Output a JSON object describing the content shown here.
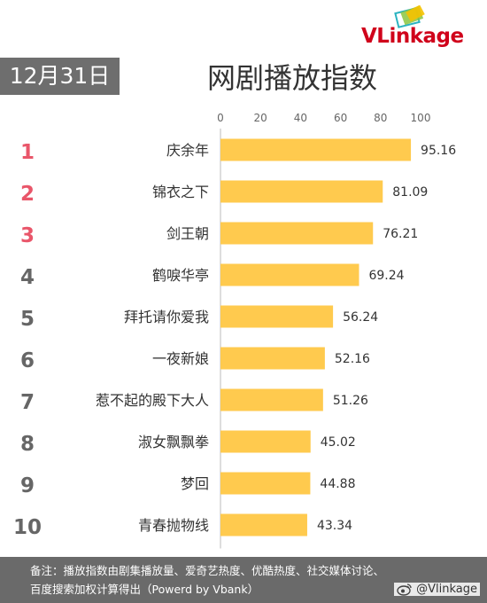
{
  "header": {
    "date": "12月31日",
    "title": "网剧播放指数",
    "logo": "VLinkage"
  },
  "chart_data": {
    "type": "bar",
    "orientation": "horizontal",
    "title": "网剧播放指数",
    "ranks": [
      "1",
      "2",
      "3",
      "4",
      "5",
      "6",
      "7",
      "8",
      "9",
      "10"
    ],
    "categories": [
      "庆余年",
      "锦衣之下",
      "剑王朝",
      "鹤唳华亭",
      "拜托请你爱我",
      "一夜新娘",
      "惹不起的殿下大人",
      "淑女飘飘拳",
      "梦回",
      "青春抛物线"
    ],
    "values": [
      95.16,
      81.09,
      76.21,
      69.24,
      56.24,
      52.16,
      51.26,
      45.02,
      44.88,
      43.34
    ],
    "value_labels": [
      "95.16",
      "81.09",
      "76.21",
      "69.24",
      "56.24",
      "52.16",
      "51.26",
      "45.02",
      "44.88",
      "43.34"
    ],
    "xlim": [
      0,
      100
    ],
    "xticks": [
      "0",
      "20",
      "40",
      "60",
      "80",
      "100"
    ],
    "axis_position": "top",
    "grid": false,
    "colors": {
      "bar": "#FFCA4E",
      "rank_top": "#E9566A",
      "rank_other": "#666666"
    }
  },
  "footer": {
    "line1": "备注：播放指数由剧集播放量、爱奇艺热度、优酷热度、社交媒体讨论、",
    "line2": "百度搜索加权计算得出（Powerd by Vbank）"
  },
  "watermark": {
    "icon": "weibo-icon",
    "text": "@Vlinkage"
  }
}
